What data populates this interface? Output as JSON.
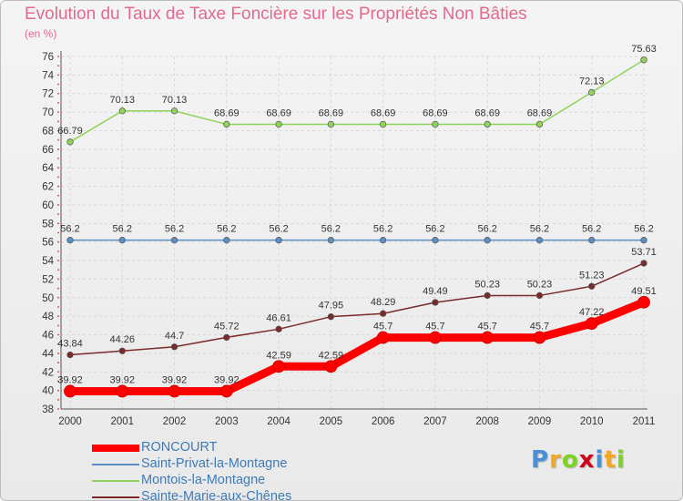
{
  "chart_data": {
    "type": "line",
    "title": "Evolution du Taux de Taxe Foncière sur les Propriétés Non Bâties",
    "ylabel": "(en %)",
    "xlabel": "",
    "categories": [
      "2000",
      "2001",
      "2002",
      "2003",
      "2004",
      "2005",
      "2006",
      "2007",
      "2008",
      "2009",
      "2010",
      "2011"
    ],
    "ylim": [
      38,
      76
    ],
    "yticks": [
      38,
      40,
      42,
      44,
      46,
      48,
      50,
      52,
      54,
      56,
      58,
      60,
      62,
      64,
      66,
      68,
      70,
      72,
      74,
      76
    ],
    "grid": true,
    "series": [
      {
        "name": "RONCOURT",
        "color": "#ff0000",
        "values": [
          39.92,
          39.92,
          39.92,
          39.92,
          42.59,
          42.59,
          45.7,
          45.7,
          45.7,
          45.7,
          47.22,
          49.51
        ],
        "labels": [
          "39.92",
          "39.92",
          "39.92",
          "39.92",
          "42.59",
          "42.59",
          "45.7",
          "45.7",
          "45.7",
          "45.7",
          "47.22",
          "49.51"
        ]
      },
      {
        "name": "Saint-Privat-la-Montagne",
        "color": "#5b8ec4",
        "values": [
          56.2,
          56.2,
          56.2,
          56.2,
          56.2,
          56.2,
          56.2,
          56.2,
          56.2,
          56.2,
          56.2,
          56.2
        ],
        "labels": [
          "56.2",
          "56.2",
          "56.2",
          "56.2",
          "56.2",
          "56.2",
          "56.2",
          "56.2",
          "56.2",
          "56.2",
          "56.2",
          "56.2"
        ]
      },
      {
        "name": "Montois-la-Montagne",
        "color": "#8fd45a",
        "values": [
          66.79,
          70.13,
          70.13,
          68.69,
          68.69,
          68.69,
          68.69,
          68.69,
          68.69,
          68.69,
          72.13,
          75.63
        ],
        "labels": [
          "66.79",
          "70.13",
          "70.13",
          "68.69",
          "68.69",
          "68.69",
          "68.69",
          "68.69",
          "68.69",
          "68.69",
          "72.13",
          "75.63"
        ]
      },
      {
        "name": "Sainte-Marie-aux-Chênes",
        "color": "#7a2a2a",
        "values": [
          43.84,
          44.26,
          44.7,
          45.72,
          46.61,
          47.95,
          48.29,
          49.49,
          50.23,
          50.23,
          51.23,
          53.71
        ],
        "labels": [
          "43.84",
          "44.26",
          "44.7",
          "45.72",
          "46.61",
          "47.95",
          "48.29",
          "49.49",
          "50.23",
          "50.23",
          "51.23",
          "53.71"
        ]
      }
    ]
  },
  "legend": {
    "items": [
      {
        "label": "RONCOURT",
        "color": "#ff0000"
      },
      {
        "label": "Saint-Privat-la-Montagne",
        "color": "#5b8ec4"
      },
      {
        "label": "Montois-la-Montagne",
        "color": "#8fd45a"
      },
      {
        "label": "Sainte-Marie-aux-Chênes",
        "color": "#7a2a2a"
      }
    ]
  },
  "brand": {
    "letters": [
      {
        "ch": "P",
        "color": "#4a90d9"
      },
      {
        "ch": "r",
        "color": "#f5a623"
      },
      {
        "ch": "o",
        "color": "#7ed321"
      },
      {
        "ch": "x",
        "color": "#d0021b"
      },
      {
        "ch": "i",
        "color": "#4a90d9"
      },
      {
        "ch": "t",
        "color": "#f5a623"
      },
      {
        "ch": "i",
        "color": "#7ed321"
      }
    ]
  }
}
